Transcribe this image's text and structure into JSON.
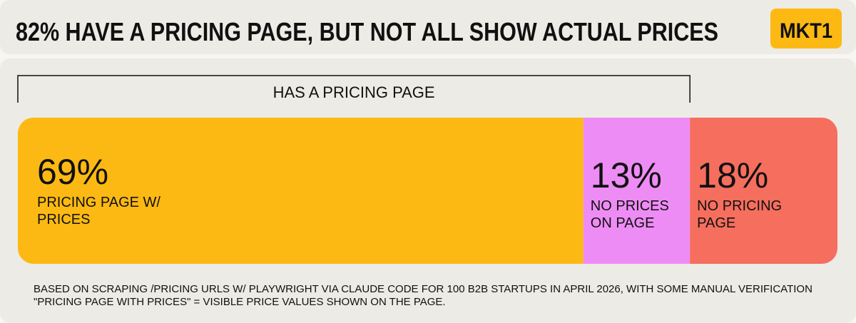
{
  "chart_data": {
    "type": "stacked-bar",
    "title": "82% HAVE A PRICING PAGE, BUT NOT ALL SHOW ACTUAL PRICES",
    "logo": "MKT1",
    "annotation": "HAS A PRICING PAGE",
    "series": [
      {
        "name": "PRICING PAGE W/ PRICES",
        "color": "#fdb913",
        "values": [
          69
        ],
        "value_labels": [
          "69%"
        ]
      },
      {
        "name": "NO PRICES ON PAGE",
        "color": "#ee8cf5",
        "values": [
          13
        ],
        "value_labels": [
          "13%"
        ]
      },
      {
        "name": "NO PRICING PAGE",
        "color": "#f56e5e",
        "values": [
          18
        ],
        "value_labels": [
          "18%"
        ]
      }
    ],
    "notes": [
      "BASED ON SCRAPING /PRICING URLS W/ PLAYWRIGHT VIA CLAUDE CODE FOR 100 B2B STARTUPS IN APRIL 2026, WITH SOME MANUAL VERIFICATION",
      "\"PRICING PAGE WITH PRICES\" = VISIBLE PRICE VALUES SHOWN ON THE PAGE."
    ]
  }
}
